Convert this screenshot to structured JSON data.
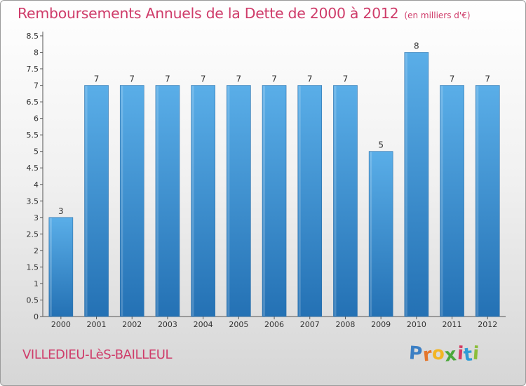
{
  "header": {
    "title": "Remboursements Annuels de la Dette de 2000 à 2012",
    "unit": "(en milliers d'€)"
  },
  "footer": {
    "commune": "VILLEDIEU-LèS-BAILLEUL",
    "logo_letters": [
      "P",
      "r",
      "o",
      "x",
      "i",
      "t",
      "i"
    ],
    "logo_colors": [
      "#3b7fc4",
      "#e4762c",
      "#f2b523",
      "#4aa83a",
      "#d63a62",
      "#2e9bd6",
      "#8bbd3a"
    ]
  },
  "colors": {
    "bar_light": "#5aaee8",
    "bar_dark": "#2471b4",
    "accent": "#cf3c6a"
  },
  "chart_data": {
    "type": "bar",
    "title": "Remboursements Annuels de la Dette de 2000 à 2012",
    "xlabel": "",
    "ylabel": "",
    "categories": [
      "2000",
      "2001",
      "2002",
      "2003",
      "2004",
      "2005",
      "2006",
      "2007",
      "2008",
      "2009",
      "2010",
      "2011",
      "2012"
    ],
    "values": [
      3,
      7,
      7,
      7,
      7,
      7,
      7,
      7,
      7,
      5,
      8,
      7,
      7
    ],
    "data_labels": [
      "3",
      "7",
      "7",
      "7",
      "7",
      "7",
      "7",
      "7",
      "7",
      "5",
      "8",
      "7",
      "7"
    ],
    "ylim": [
      0,
      8.5
    ],
    "yticks": [
      "0",
      "0.5",
      "1",
      "1.5",
      "2",
      "2.5",
      "3",
      "3.5",
      "4",
      "4.5",
      "5",
      "5.5",
      "6",
      "6.5",
      "7",
      "7.5",
      "8",
      "8.5"
    ],
    "grid": false,
    "legend": "none"
  }
}
